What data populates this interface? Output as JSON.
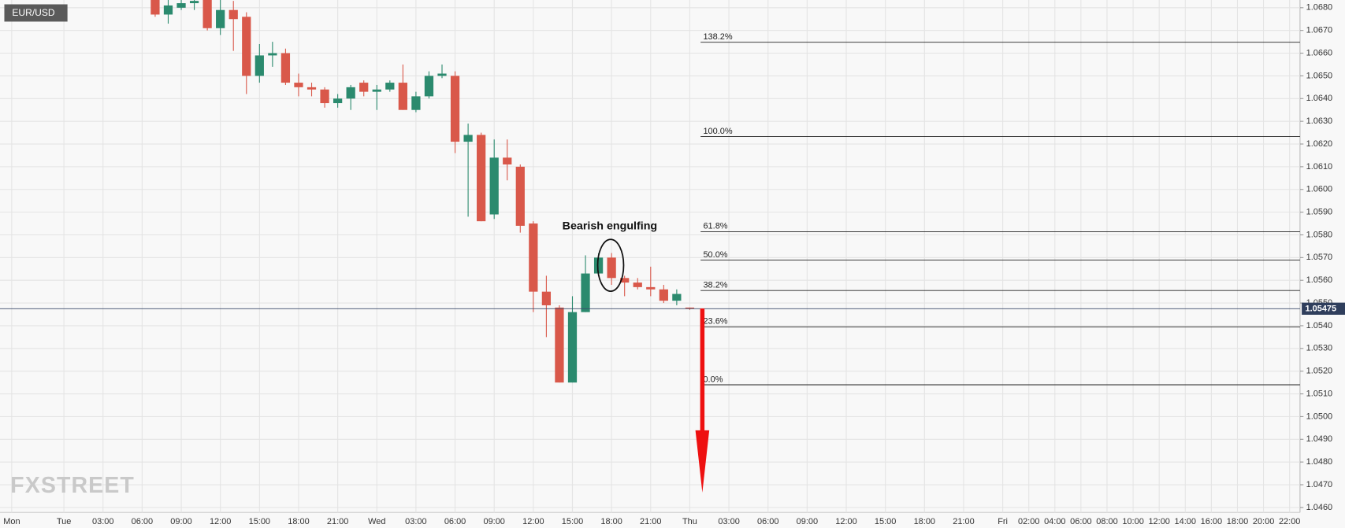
{
  "chart_data": {
    "type": "candlestick",
    "title": "EUR/USD",
    "watermark": "FXSTREET",
    "x": [
      7,
      8,
      9,
      10,
      11,
      12,
      13,
      14,
      15,
      16,
      17,
      18,
      19,
      20,
      21,
      22,
      23,
      24,
      25,
      26,
      27,
      28,
      29,
      30,
      31,
      32,
      33,
      34,
      35,
      36,
      37,
      38,
      39,
      40,
      41,
      42,
      43,
      44,
      45,
      46,
      47,
      48
    ],
    "open": [
      1.0684,
      1.0677,
      1.068,
      1.0682,
      1.0685,
      1.0671,
      1.0679,
      1.0676,
      1.065,
      1.0659,
      1.066,
      1.0647,
      1.0645,
      1.0644,
      1.0638,
      1.064,
      1.0647,
      1.0643,
      1.0644,
      1.0647,
      1.0635,
      1.0641,
      1.065,
      1.065,
      1.0621,
      1.0624,
      1.0589,
      1.0614,
      1.061,
      1.0585,
      1.0555,
      1.0548,
      1.0515,
      1.0546,
      1.0563,
      1.057,
      1.0561,
      1.0559,
      1.0557,
      1.0556,
      1.0551,
      1.0548
    ],
    "high": [
      1.0686,
      1.0684,
      1.0684,
      1.0686,
      1.0686,
      1.0684,
      1.0683,
      1.0678,
      1.0664,
      1.0665,
      1.0662,
      1.0651,
      1.0647,
      1.0645,
      1.0642,
      1.0646,
      1.0648,
      1.0646,
      1.0648,
      1.0655,
      1.0643,
      1.0652,
      1.0655,
      1.0652,
      1.0629,
      1.0625,
      1.0622,
      1.0622,
      1.0611,
      1.0586,
      1.0562,
      1.0549,
      1.0553,
      1.0571,
      1.0572,
      1.0572,
      1.0562,
      1.0561,
      1.0566,
      1.0558,
      1.0556,
      1.0548
    ],
    "low": [
      1.0676,
      1.0673,
      1.0679,
      1.0679,
      1.067,
      1.0668,
      1.0661,
      1.0642,
      1.0647,
      1.0654,
      1.0646,
      1.0641,
      1.0641,
      1.0636,
      1.0636,
      1.0635,
      1.0641,
      1.0635,
      1.0643,
      1.0635,
      1.0634,
      1.064,
      1.0649,
      1.0616,
      1.0588,
      1.0586,
      1.0587,
      1.0604,
      1.0581,
      1.0546,
      1.0535,
      1.0515,
      1.0515,
      1.0546,
      1.0562,
      1.0558,
      1.0553,
      1.0556,
      1.0553,
      1.055,
      1.0549,
      1.0547
    ],
    "close": [
      1.0677,
      1.0681,
      1.0682,
      1.0683,
      1.0671,
      1.0679,
      1.0675,
      1.065,
      1.0659,
      1.066,
      1.0647,
      1.0645,
      1.0644,
      1.0638,
      1.064,
      1.0645,
      1.0643,
      1.0644,
      1.0647,
      1.0635,
      1.0641,
      1.065,
      1.0651,
      1.0621,
      1.0624,
      1.0586,
      1.0614,
      1.0611,
      1.0584,
      1.0555,
      1.0549,
      1.0515,
      1.0546,
      1.0563,
      1.057,
      1.0561,
      1.0559,
      1.0557,
      1.0556,
      1.0551,
      1.0554,
      1.05475
    ],
    "up_color": "#2b8a6e",
    "down_color": "#d9584a",
    "xlim": [
      -4.9,
      94.8
    ],
    "xticks": [
      {
        "value": -4,
        "label": "Mon"
      },
      {
        "value": 0,
        "label": "Tue"
      },
      {
        "value": 3,
        "label": "03:00"
      },
      {
        "value": 6,
        "label": "06:00"
      },
      {
        "value": 9,
        "label": "09:00"
      },
      {
        "value": 12,
        "label": "12:00"
      },
      {
        "value": 15,
        "label": "15:00"
      },
      {
        "value": 18,
        "label": "18:00"
      },
      {
        "value": 21,
        "label": "21:00"
      },
      {
        "value": 24,
        "label": "Wed"
      },
      {
        "value": 27,
        "label": "03:00"
      },
      {
        "value": 30,
        "label": "06:00"
      },
      {
        "value": 33,
        "label": "09:00"
      },
      {
        "value": 36,
        "label": "12:00"
      },
      {
        "value": 39,
        "label": "15:00"
      },
      {
        "value": 42,
        "label": "18:00"
      },
      {
        "value": 45,
        "label": "21:00"
      },
      {
        "value": 48,
        "label": "Thu"
      },
      {
        "value": 51,
        "label": "03:00"
      },
      {
        "value": 54,
        "label": "06:00"
      },
      {
        "value": 57,
        "label": "09:00"
      },
      {
        "value": 60,
        "label": "12:00"
      },
      {
        "value": 63,
        "label": "15:00"
      },
      {
        "value": 66,
        "label": "18:00"
      },
      {
        "value": 69,
        "label": "21:00"
      },
      {
        "value": 72,
        "label": "Fri"
      },
      {
        "value": 74,
        "label": "02:00"
      },
      {
        "value": 76,
        "label": "04:00"
      },
      {
        "value": 78,
        "label": "06:00"
      },
      {
        "value": 80,
        "label": "08:00"
      },
      {
        "value": 82,
        "label": "10:00"
      },
      {
        "value": 84,
        "label": "12:00"
      },
      {
        "value": 86,
        "label": "14:00"
      },
      {
        "value": 88,
        "label": "16:00"
      },
      {
        "value": 90,
        "label": "18:00"
      },
      {
        "value": 92,
        "label": "20:00"
      },
      {
        "value": 94,
        "label": "22:00"
      }
    ],
    "ylim": [
      1.04578,
      1.06834
    ],
    "yticks": [
      {
        "value": 1.068,
        "label": "1.0680"
      },
      {
        "value": 1.067,
        "label": "1.0670"
      },
      {
        "value": 1.066,
        "label": "1.0660"
      },
      {
        "value": 1.065,
        "label": "1.0650"
      },
      {
        "value": 1.064,
        "label": "1.0640"
      },
      {
        "value": 1.063,
        "label": "1.0630"
      },
      {
        "value": 1.062,
        "label": "1.0620"
      },
      {
        "value": 1.061,
        "label": "1.0610"
      },
      {
        "value": 1.06,
        "label": "1.0600"
      },
      {
        "value": 1.059,
        "label": "1.0590"
      },
      {
        "value": 1.058,
        "label": "1.0580"
      },
      {
        "value": 1.057,
        "label": "1.0570"
      },
      {
        "value": 1.056,
        "label": "1.0560"
      },
      {
        "value": 1.055,
        "label": "1.0550"
      },
      {
        "value": 1.054,
        "label": "1.0540"
      },
      {
        "value": 1.053,
        "label": "1.0530"
      },
      {
        "value": 1.052,
        "label": "1.0520"
      },
      {
        "value": 1.051,
        "label": "1.0510"
      },
      {
        "value": 1.05,
        "label": "1.0500"
      },
      {
        "value": 1.049,
        "label": "1.0490"
      },
      {
        "value": 1.048,
        "label": "1.0480"
      },
      {
        "value": 1.047,
        "label": "1.0470"
      },
      {
        "value": 1.046,
        "label": "1.0460"
      }
    ],
    "grid": true,
    "current_price": 1.05475,
    "fib_levels": [
      {
        "label": "138.2%",
        "value": 1.06648
      },
      {
        "label": "100.0%",
        "value": 1.06233
      },
      {
        "label": "61.8%",
        "value": 1.05814
      },
      {
        "label": "50.0%",
        "value": 1.05689
      },
      {
        "label": "38.2%",
        "value": 1.05555
      },
      {
        "label": "23.6%",
        "value": 1.05395
      },
      {
        "label": "0.0%",
        "value": 1.0514
      }
    ],
    "annotation": "Bearish engulfing"
  }
}
